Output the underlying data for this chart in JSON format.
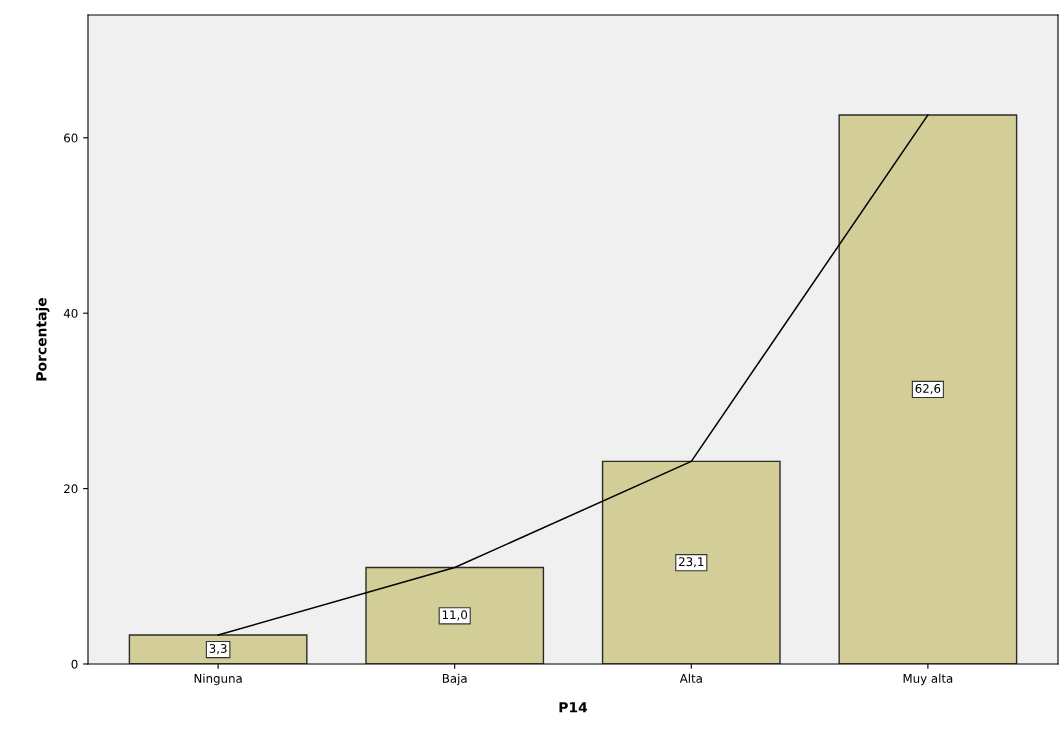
{
  "chart_data": {
    "type": "bar",
    "xlabel": "P14",
    "ylabel": "Porcentaje",
    "categories": [
      "Ninguna",
      "Baja",
      "Alta",
      "Muy alta"
    ],
    "series": [
      {
        "color": "#d3ce97",
        "values": [
          3.3,
          11.0,
          23.1,
          62.6
        ],
        "value_labels": [
          "3,3",
          "11,0",
          "23,1",
          "62,6"
        ]
      },
      {
        "type": "line",
        "color": "#000000",
        "values": [
          3.3,
          11.0,
          23.1,
          62.6
        ],
        "marker": "none",
        "line_style": "solid"
      }
    ],
    "ylim": [
      0,
      74
    ],
    "yticks": [
      0,
      20,
      40,
      60
    ],
    "grid": false,
    "legend": false
  }
}
